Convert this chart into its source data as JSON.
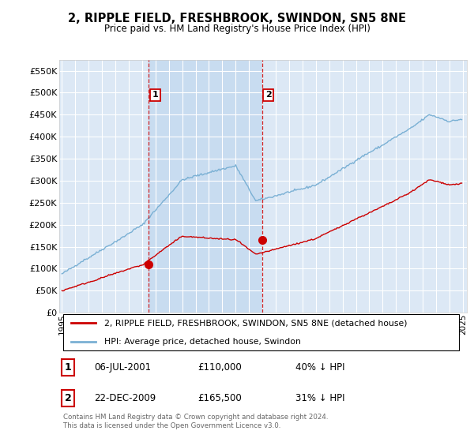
{
  "title": "2, RIPPLE FIELD, FRESHBROOK, SWINDON, SN5 8NE",
  "subtitle": "Price paid vs. HM Land Registry's House Price Index (HPI)",
  "ylabel_ticks": [
    "£0",
    "£50K",
    "£100K",
    "£150K",
    "£200K",
    "£250K",
    "£300K",
    "£350K",
    "£400K",
    "£450K",
    "£500K",
    "£550K"
  ],
  "ytick_values": [
    0,
    50000,
    100000,
    150000,
    200000,
    250000,
    300000,
    350000,
    400000,
    450000,
    500000,
    550000
  ],
  "ylim": [
    0,
    575000
  ],
  "hpi_color": "#7ab0d4",
  "price_color": "#cc0000",
  "bg_color": "#dce8f5",
  "shade_color": "#c8dcf0",
  "legend_label_price": "2, RIPPLE FIELD, FRESHBROOK, SWINDON, SN5 8NE (detached house)",
  "legend_label_hpi": "HPI: Average price, detached house, Swindon",
  "purchase1_x": 2001.5,
  "purchase1_price": 110000,
  "purchase2_x": 2009.97,
  "purchase2_price": 165500,
  "footer": "Contains HM Land Registry data © Crown copyright and database right 2024.\nThis data is licensed under the Open Government Licence v3.0.",
  "table_rows": [
    {
      "num": "1",
      "date": "06-JUL-2001",
      "price": "£110,000",
      "note": "40% ↓ HPI"
    },
    {
      "num": "2",
      "date": "22-DEC-2009",
      "price": "£165,500",
      "note": "31% ↓ HPI"
    }
  ],
  "xtick_years": [
    1995,
    1996,
    1997,
    1998,
    1999,
    2000,
    2001,
    2002,
    2003,
    2004,
    2005,
    2006,
    2007,
    2008,
    2009,
    2010,
    2011,
    2012,
    2013,
    2014,
    2015,
    2016,
    2017,
    2018,
    2019,
    2020,
    2021,
    2022,
    2023,
    2024,
    2025
  ]
}
